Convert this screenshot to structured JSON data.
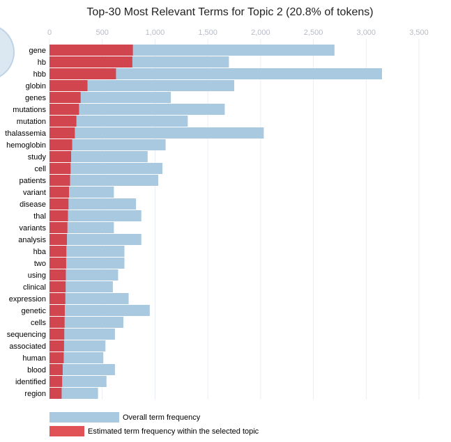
{
  "colors": {
    "overall_bar": "#a9c9e1",
    "topic_bar": "#d1454f",
    "legend_topic": "#e05256",
    "circle_fill": "#dbe7f1",
    "circle_stroke": "#bfd3e6",
    "gridline": "#e9eef5"
  },
  "chart_data": {
    "type": "bar",
    "orientation": "horizontal",
    "title": "Top-30 Most Relevant Terms for Topic 2 (20.8% of tokens)",
    "x_ticks": [
      "0",
      "500",
      "1,000",
      "1,500",
      "2,000",
      "2,500",
      "3,000",
      "3,500"
    ],
    "xlim": [
      0,
      3500
    ],
    "grid": true,
    "legend_position": "bottom-left",
    "categories": [
      "gene",
      "hb",
      "hbb",
      "globin",
      "genes",
      "mutations",
      "mutation",
      "thalassemia",
      "hemoglobin",
      "study",
      "cell",
      "patients",
      "variant",
      "disease",
      "thal",
      "variants",
      "analysis",
      "hba",
      "two",
      "using",
      "clinical",
      "expression",
      "genetic",
      "cells",
      "sequencing",
      "associated",
      "human",
      "blood",
      "identified",
      "region"
    ],
    "series": [
      {
        "name": "Overall term frequency",
        "color": "#a9c9e1",
        "values": [
          2700,
          1700,
          3150,
          1750,
          1150,
          1660,
          1310,
          2030,
          1100,
          930,
          1070,
          1030,
          610,
          820,
          870,
          610,
          870,
          710,
          710,
          650,
          600,
          750,
          950,
          700,
          620,
          530,
          510,
          620,
          540,
          460
        ]
      },
      {
        "name": "Estimated term frequency within the selected topic",
        "color": "#d1454f",
        "values": [
          790,
          785,
          630,
          360,
          295,
          280,
          255,
          240,
          215,
          205,
          200,
          195,
          185,
          180,
          175,
          170,
          165,
          160,
          158,
          155,
          153,
          150,
          145,
          143,
          140,
          138,
          135,
          125,
          120,
          115
        ]
      }
    ]
  }
}
